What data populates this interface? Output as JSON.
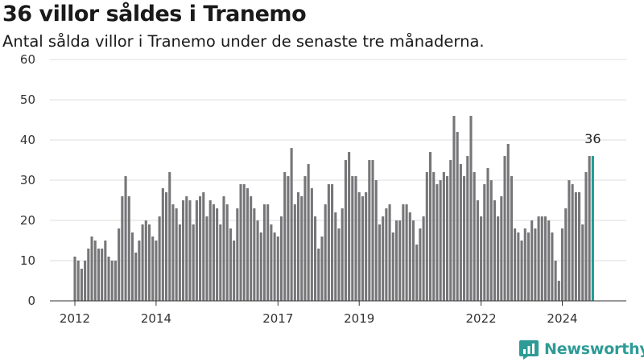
{
  "header": {
    "title": "36 villor såldes i Tranemo",
    "subtitle": "Antal sålda villor i Tranemo under de senaste tre månaderna."
  },
  "brand": {
    "name": "Newsworthy",
    "color": "#2e9b96",
    "logo_icon": "newsworthy-chart-icon"
  },
  "colors": {
    "bar": "#767578",
    "highlight": "#1e9b96"
  },
  "chart_data": {
    "type": "bar",
    "title": "36 villor såldes i Tranemo",
    "subtitle": "Antal sålda villor i Tranemo under de senaste tre månaderna.",
    "xlabel": "",
    "ylabel": "",
    "ylim": [
      0,
      60
    ],
    "yticks": [
      0,
      10,
      20,
      30,
      40,
      50,
      60
    ],
    "xtick_labels": [
      "2012",
      "2014",
      "2017",
      "2019",
      "2022",
      "2024"
    ],
    "grid": true,
    "legend": false,
    "start": "2012-01",
    "interval": "month",
    "highlight_label": "36",
    "values": [
      11,
      10,
      8,
      10,
      13,
      16,
      15,
      13,
      13,
      15,
      11,
      10,
      10,
      18,
      26,
      31,
      26,
      17,
      12,
      15,
      19,
      20,
      19,
      16,
      15,
      21,
      28,
      27,
      32,
      24,
      23,
      19,
      25,
      26,
      25,
      19,
      25,
      26,
      27,
      21,
      25,
      24,
      23,
      19,
      26,
      24,
      18,
      15,
      23,
      29,
      29,
      28,
      26,
      23,
      20,
      17,
      24,
      24,
      19,
      17,
      16,
      21,
      32,
      31,
      38,
      24,
      27,
      26,
      31,
      34,
      28,
      21,
      13,
      16,
      24,
      29,
      29,
      22,
      18,
      23,
      35,
      37,
      31,
      31,
      27,
      26,
      27,
      35,
      35,
      30,
      19,
      21,
      23,
      24,
      17,
      20,
      20,
      24,
      24,
      22,
      20,
      14,
      18,
      21,
      32,
      37,
      32,
      29,
      30,
      32,
      31,
      35,
      46,
      42,
      34,
      31,
      36,
      46,
      32,
      25,
      21,
      29,
      33,
      30,
      25,
      21,
      26,
      36,
      39,
      31,
      18,
      17,
      15,
      18,
      17,
      20,
      18,
      21,
      21,
      21,
      20,
      17,
      10,
      5,
      18,
      23,
      30,
      29,
      27,
      27,
      19,
      32,
      36,
      36
    ]
  }
}
